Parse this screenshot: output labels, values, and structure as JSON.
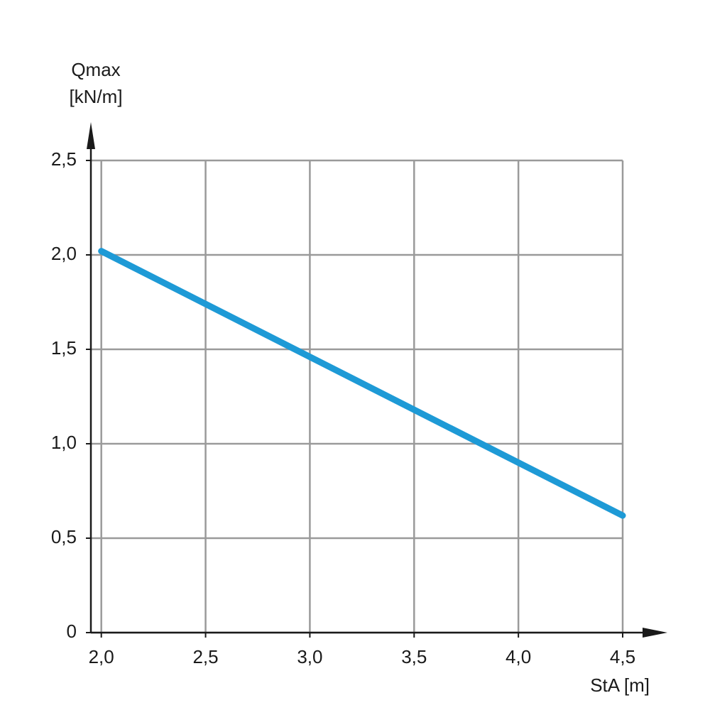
{
  "chart_data": {
    "type": "line",
    "ylabel": "Qmax",
    "yunit": "[kN/m]",
    "xlabel": "StA [m]",
    "x": [
      2.0,
      4.5
    ],
    "series": [
      {
        "name": "Qmax",
        "color": "#1e9ad6",
        "values": [
          2.02,
          0.62
        ]
      }
    ],
    "xlim": [
      1.95,
      4.5
    ],
    "xticks": [
      {
        "value": 2.0,
        "label": "2,0"
      },
      {
        "value": 2.5,
        "label": "2,5"
      },
      {
        "value": 3.0,
        "label": "3,0"
      },
      {
        "value": 3.5,
        "label": "3,5"
      },
      {
        "value": 4.0,
        "label": "4,0"
      },
      {
        "value": 4.5,
        "label": "4,5"
      }
    ],
    "ylim": [
      0,
      2.5
    ],
    "yticks": [
      0,
      {
        "value": 0.5,
        "label": "0,5"
      },
      {
        "value": 1.0,
        "label": "1,0"
      },
      {
        "value": 1.5,
        "label": "1,5"
      },
      {
        "value": 2.0,
        "label": "2,0"
      },
      {
        "value": 2.5,
        "label": "2,5"
      }
    ],
    "grid": true
  }
}
